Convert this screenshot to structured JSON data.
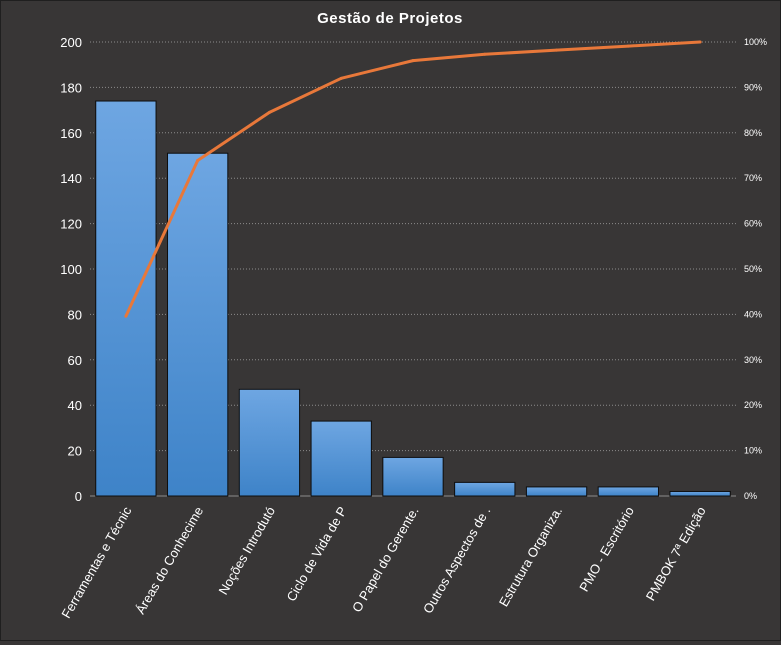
{
  "chart_data": {
    "type": "bar",
    "title": "Gestão de Projetos",
    "categories": [
      "Ferramentas e Técnic",
      "Áreas do Conhecime",
      "Noções Introdutó",
      "Ciclo de Vida de P",
      "O Papel do Gerente.",
      "Outros Aspectos de .",
      "Estrutura Organiza.",
      "PMO - Escritório",
      "PMBOK 7ª Edição"
    ],
    "series": [
      {
        "type": "bar",
        "axis": "left",
        "values": [
          174,
          151,
          47,
          33,
          17,
          6,
          4,
          4,
          2
        ]
      },
      {
        "type": "line",
        "axis": "right",
        "values": [
          39.6,
          73.9,
          84.5,
          92.0,
          95.9,
          97.3,
          98.2,
          99.1,
          100.0
        ]
      }
    ],
    "y_left": {
      "min": 0,
      "max": 200,
      "ticks": [
        "0",
        "20",
        "40",
        "60",
        "80",
        "100",
        "120",
        "140",
        "160",
        "180",
        "200"
      ]
    },
    "y_right": {
      "min": 0,
      "max": 100,
      "ticks": [
        "0%",
        "10%",
        "20%",
        "30%",
        "40%",
        "50%",
        "60%",
        "70%",
        "80%",
        "90%",
        "100%"
      ]
    },
    "grid": "horizontal",
    "legend": "none",
    "colors": {
      "background": "#383636",
      "bar_fill_top": "#6ea6e2",
      "bar_fill_bottom": "#3e83c8",
      "bar_stroke": "#0d0d0d",
      "line": "#e8783a",
      "grid": "#8c8c8c",
      "text": "#ffffff"
    }
  }
}
